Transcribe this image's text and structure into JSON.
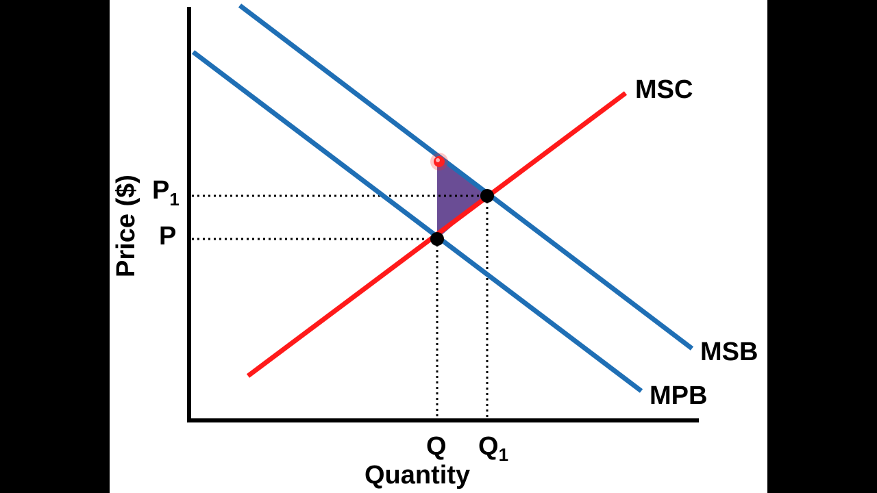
{
  "axes": {
    "x_label": "Quantity",
    "y_label": "Price ($)"
  },
  "curves": {
    "msc": {
      "label": "MSC",
      "color": "#ff1a1a"
    },
    "msb": {
      "label": "MSB",
      "color": "#1f6fb5"
    },
    "mpb": {
      "label": "MPB",
      "color": "#1f6fb5"
    }
  },
  "levels": {
    "p": {
      "letter": "P",
      "sub": ""
    },
    "p1": {
      "letter": "P",
      "sub": "1"
    },
    "q": {
      "letter": "Q",
      "sub": ""
    },
    "q1": {
      "letter": "Q",
      "sub": "1"
    }
  },
  "colors": {
    "background": "#ffffff",
    "letterbox": "#000000",
    "axis": "#000000",
    "welfare_area": "#5a3a8a",
    "marker": "#ff2020"
  }
}
